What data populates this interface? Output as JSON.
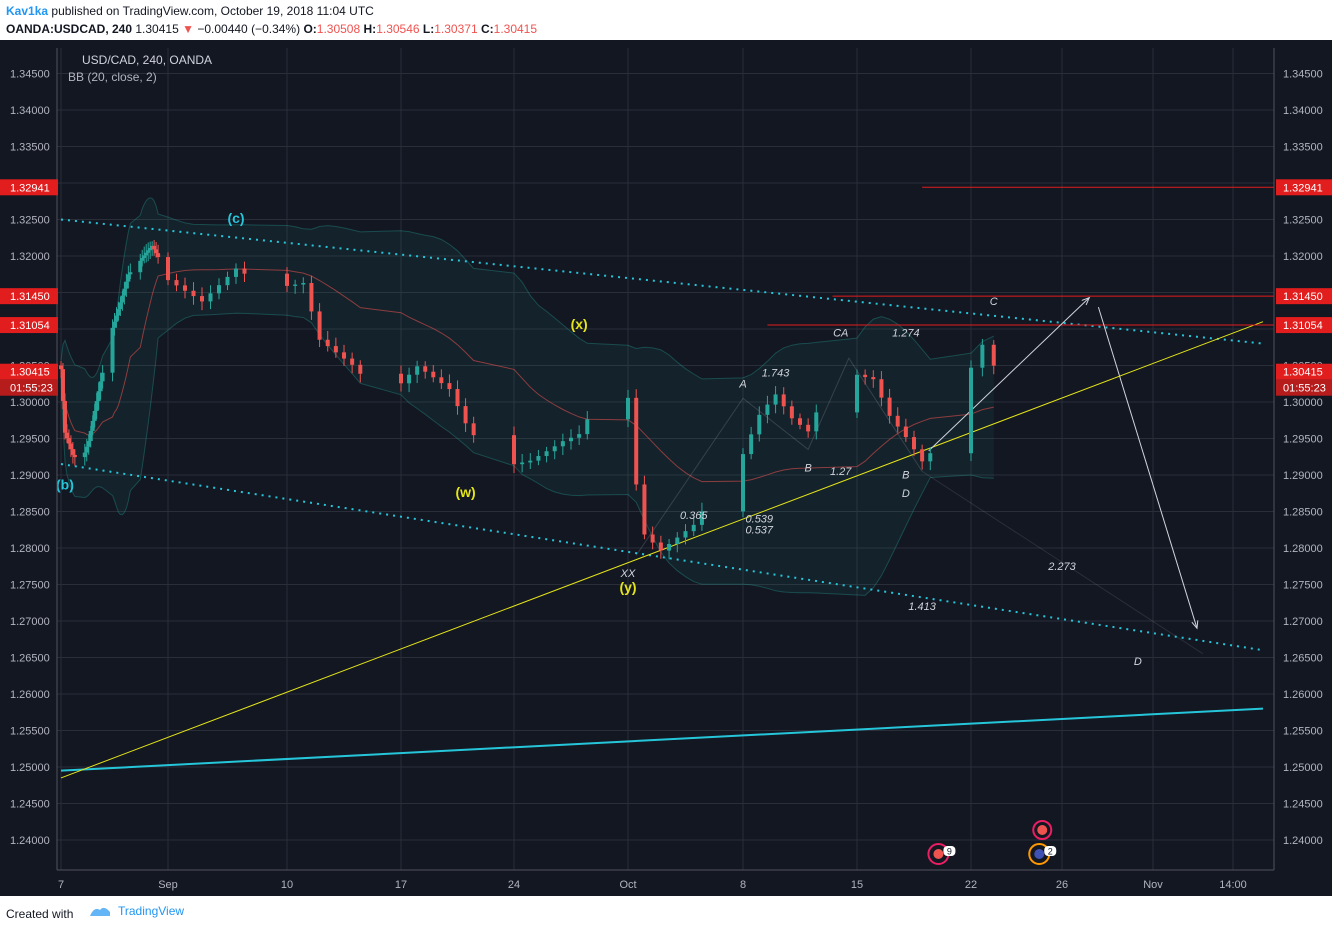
{
  "header": {
    "author": "Kav1ka",
    "published_text": "published on TradingView.com, October 19, 2018 11:04 UTC",
    "symbol": "OANDA:USDCAD, 240",
    "last": "1.30415",
    "change": "−0.00440 (−0.34%)",
    "o_label": "O:",
    "o_value": "1.30508",
    "h_label": "H:",
    "h_value": "1.30546",
    "l_label": "L:",
    "l_value": "1.30371",
    "c_label": "C:",
    "c_value": "1.30415"
  },
  "legend": {
    "title": "USD/CAD, 240, OANDA",
    "indicator": "BB (20, close, 2)"
  },
  "footer": {
    "created_with": "Created with",
    "brand": "TradingView"
  },
  "colors": {
    "background": "#131722",
    "grid": "#2a2e39",
    "up": "#26a69a",
    "down": "#ef5350",
    "cyan": "#26c6da",
    "yellow": "#e5e51a",
    "red_level": "#e11d1d"
  },
  "chart_data": {
    "type": "candlestick",
    "y_axis": {
      "range": [
        1.2365,
        1.3495
      ],
      "ticks": [
        "1.34500",
        "1.34000",
        "1.33500",
        "1.33000",
        "1.32500",
        "1.32000",
        "1.31500",
        "1.31000",
        "1.30500",
        "1.30000",
        "1.29500",
        "1.29000",
        "1.28500",
        "1.28000",
        "1.27500",
        "1.27000",
        "1.26500",
        "1.26000",
        "1.25500",
        "1.25000",
        "1.24500",
        "1.24000"
      ]
    },
    "x_axis": {
      "ticks": [
        {
          "label": "7",
          "date": "2018-08-07"
        },
        {
          "label": "Sep",
          "date": "2018-09-03"
        },
        {
          "label": "10",
          "date": "2018-09-10"
        },
        {
          "label": "17",
          "date": "2018-09-17"
        },
        {
          "label": "24",
          "date": "2018-09-24"
        },
        {
          "label": "Oct",
          "date": "2018-10-01"
        },
        {
          "label": "8",
          "date": "2018-10-08"
        },
        {
          "label": "15",
          "date": "2018-10-15"
        },
        {
          "label": "22",
          "date": "2018-10-22"
        },
        {
          "label": "26",
          "date": "2018-10-26"
        },
        {
          "label": "Nov",
          "date": "2018-11-01"
        },
        {
          "label": "14:00",
          "date": "2018-11-05"
        }
      ]
    },
    "price_levels": [
      {
        "label": "1.32941",
        "value": 1.32941
      },
      {
        "label": "1.31450",
        "value": 1.3145
      },
      {
        "label": "1.31054",
        "value": 1.31054
      },
      {
        "label": "1.30415",
        "value": 1.30415
      }
    ],
    "countdown": "01:55:23",
    "wave_labels": [
      {
        "text": "(c)",
        "date": "2018-09-07",
        "price": 1.3245,
        "color": "cyan"
      },
      {
        "text": "(b)",
        "date": "2018-08-08",
        "price": 1.288,
        "color": "cyan"
      },
      {
        "text": "(w)",
        "date": "2018-09-21",
        "price": 1.287,
        "color": "yellow"
      },
      {
        "text": "(x)",
        "date": "2018-09-28",
        "price": 1.31,
        "color": "yellow"
      },
      {
        "text": "(y)",
        "date": "2018-10-01",
        "price": 1.274,
        "color": "yellow"
      }
    ],
    "pattern_labels": [
      {
        "text": "XX",
        "date": "2018-10-01",
        "price": 1.276
      },
      {
        "text": "A",
        "date": "2018-10-08",
        "price": 1.302
      },
      {
        "text": "B",
        "date": "2018-10-12",
        "price": 1.2905
      },
      {
        "text": "CA",
        "date": "2018-10-14",
        "price": 1.309
      },
      {
        "text": "B",
        "date": "2018-10-18",
        "price": 1.2895
      },
      {
        "text": "D",
        "date": "2018-10-18",
        "price": 1.287
      },
      {
        "text": "C",
        "date": "2018-10-23",
        "price": 1.3133
      },
      {
        "text": "D",
        "date": "2018-10-31",
        "price": 1.264
      }
    ],
    "ratio_labels": [
      {
        "text": "1.743",
        "date": "2018-10-10",
        "price": 1.3035
      },
      {
        "text": "1.274",
        "date": "2018-10-18",
        "price": 1.309
      },
      {
        "text": "1.27",
        "date": "2018-10-14",
        "price": 1.29
      },
      {
        "text": "0.365",
        "date": "2018-10-05",
        "price": 1.284
      },
      {
        "text": "0.539",
        "date": "2018-10-09",
        "price": 1.2835
      },
      {
        "text": "0.537",
        "date": "2018-10-09",
        "price": 1.282
      },
      {
        "text": "2.273",
        "date": "2018-10-26",
        "price": 1.277
      },
      {
        "text": "1.413",
        "date": "2018-10-19",
        "price": 1.2715
      }
    ],
    "calendar_events": [
      {
        "count": "9",
        "date": "2018-10-20"
      },
      {
        "count": "2",
        "date": "2018-10-25"
      }
    ]
  }
}
